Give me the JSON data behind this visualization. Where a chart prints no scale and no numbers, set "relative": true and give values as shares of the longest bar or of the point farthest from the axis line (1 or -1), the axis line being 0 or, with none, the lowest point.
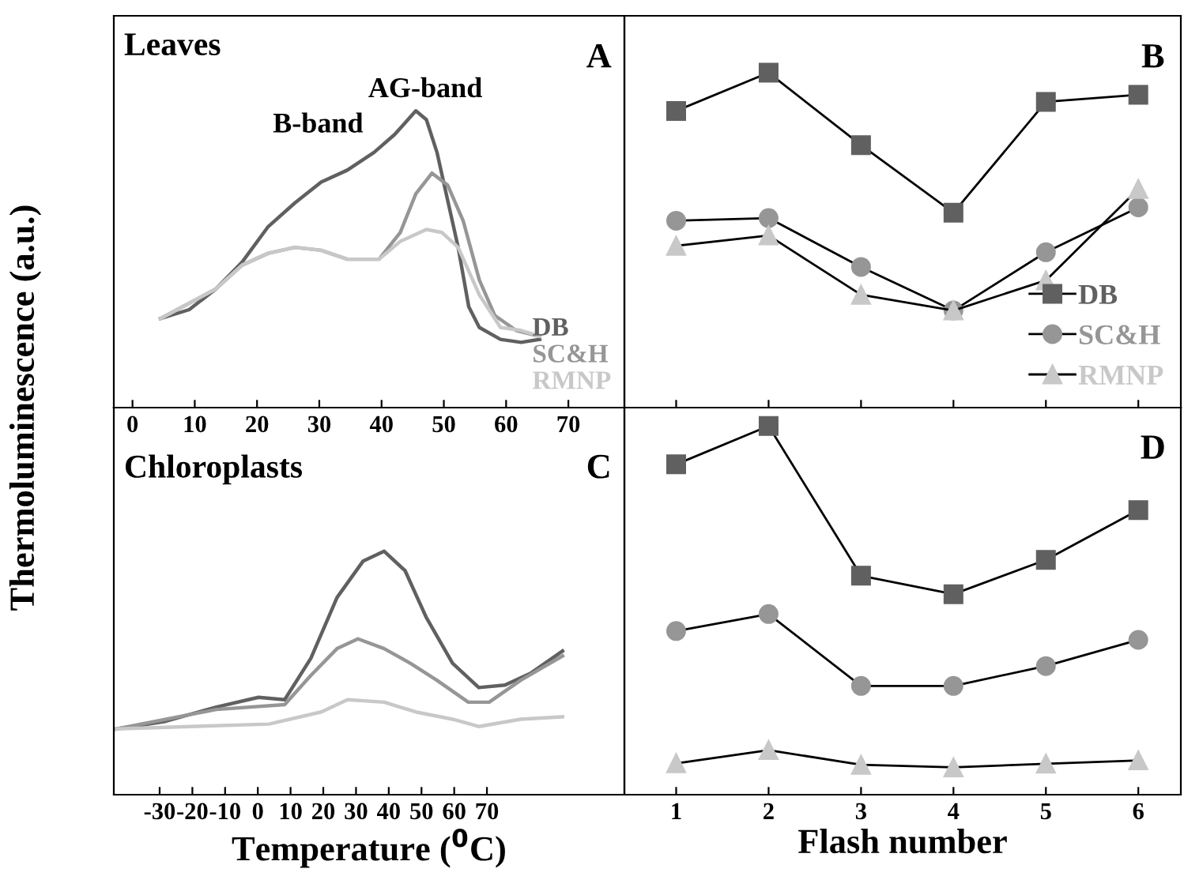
{
  "chart_data": [
    {
      "type": "line",
      "title": "Leaves",
      "ylabel": "Thermoluminescence (a.u.)",
      "relative": true,
      "xlim": [
        -3,
        79
      ],
      "xticks": [
        0,
        10,
        20,
        30,
        40,
        50,
        60,
        70
      ],
      "tick_labels": "x",
      "grid": false,
      "legend": "bottom right",
      "marker": "none",
      "annotations": [
        "A",
        "B-band",
        "AG-band"
      ],
      "series": [
        {
          "name": "DB",
          "color": "#606060",
          "x": [
            4.5,
            9.1,
            13.4,
            17.6,
            21.8,
            26.1,
            30.3,
            34.5,
            38.8,
            42.1,
            45.5,
            47.2,
            48.9,
            50.6,
            52.3,
            54.0,
            55.7,
            59.1,
            62.4,
            65.4
          ],
          "values": [
            0.3,
            0.33,
            0.4,
            0.49,
            0.61,
            0.69,
            0.76,
            0.8,
            0.86,
            0.92,
            1.0,
            0.97,
            0.86,
            0.7,
            0.54,
            0.34,
            0.27,
            0.23,
            0.22,
            0.23
          ]
        },
        {
          "name": "SC&H",
          "color": "#969696",
          "x": [
            4.5,
            13.4,
            17.6,
            21.8,
            26.1,
            30.3,
            34.5,
            39.6,
            43.0,
            45.5,
            48.1,
            50.6,
            53.1,
            55.7,
            58.2,
            61.6,
            65.4
          ],
          "values": [
            0.3,
            0.4,
            0.48,
            0.52,
            0.54,
            0.53,
            0.5,
            0.5,
            0.59,
            0.72,
            0.79,
            0.75,
            0.63,
            0.43,
            0.31,
            0.26,
            0.24
          ]
        },
        {
          "name": "RMNP",
          "color": "#c8c8c8",
          "x": [
            4.5,
            13.4,
            17.6,
            21.8,
            26.1,
            30.3,
            34.5,
            39.6,
            43.0,
            47.2,
            49.7,
            52.3,
            55.7,
            59.1,
            62.4,
            65.4
          ],
          "values": [
            0.3,
            0.4,
            0.48,
            0.52,
            0.54,
            0.53,
            0.5,
            0.5,
            0.56,
            0.6,
            0.59,
            0.54,
            0.38,
            0.27,
            0.26,
            0.24
          ]
        }
      ]
    },
    {
      "type": "line",
      "relative": true,
      "categories": [
        "1",
        "2",
        "3",
        "4",
        "5",
        "6"
      ],
      "tick_labels": false,
      "grid": false,
      "legend": "bottom right",
      "line_style": "solid",
      "annotations": [
        "B"
      ],
      "series": [
        {
          "name": "DB",
          "color": "#606060",
          "marker": "square",
          "values": [
            0.886,
            1.0,
            0.784,
            0.582,
            0.913,
            0.934
          ]
        },
        {
          "name": "SC&H",
          "color": "#969696",
          "marker": "circle",
          "values": [
            0.558,
            0.566,
            0.42,
            0.29,
            0.464,
            0.598
          ]
        },
        {
          "name": "RMNP",
          "color": "#c8c8c8",
          "marker": "triangle",
          "values": [
            0.483,
            0.514,
            0.337,
            0.29,
            0.38,
            0.653
          ]
        }
      ]
    },
    {
      "type": "line",
      "title": "Chloroplasts",
      "xlabel": "Temperature ($^{0}$C)",
      "relative": true,
      "xlim": [
        -44,
        112
      ],
      "xticks": [
        -30,
        -20,
        -10,
        0,
        10,
        20,
        30,
        40,
        50,
        60,
        70
      ],
      "tick_labels": "x",
      "grid": false,
      "legend": false,
      "marker": "none",
      "annotations": [
        "C"
      ],
      "series": [
        {
          "color": "#606060",
          "x": [
            -43.1,
            -28.7,
            -12.7,
            0.2,
            8.2,
            16.2,
            24.2,
            32.2,
            38.6,
            45.0,
            51.4,
            59.5,
            67.5,
            75.5,
            83.5,
            93.1
          ],
          "values": [
            0.27,
            0.3,
            0.36,
            0.4,
            0.39,
            0.56,
            0.81,
            0.96,
            1.0,
            0.92,
            0.73,
            0.54,
            0.44,
            0.45,
            0.5,
            0.59
          ]
        },
        {
          "color": "#969696",
          "x": [
            -43.1,
            -12.7,
            8.2,
            16.2,
            24.2,
            30.6,
            38.6,
            46.6,
            54.7,
            64.3,
            70.7,
            80.3,
            93.1
          ],
          "values": [
            0.27,
            0.35,
            0.37,
            0.49,
            0.6,
            0.64,
            0.6,
            0.54,
            0.47,
            0.38,
            0.38,
            0.47,
            0.57
          ]
        },
        {
          "color": "#c8c8c8",
          "x": [
            -43.1,
            -20.7,
            3.4,
            19.4,
            27.4,
            38.6,
            48.2,
            59.5,
            67.5,
            80.3,
            93.1
          ],
          "values": [
            0.27,
            0.28,
            0.29,
            0.34,
            0.39,
            0.38,
            0.34,
            0.31,
            0.28,
            0.31,
            0.32
          ]
        }
      ]
    },
    {
      "type": "line",
      "xlabel": "Flash number",
      "relative": true,
      "categories": [
        "1",
        "2",
        "3",
        "4",
        "5",
        "6"
      ],
      "tick_labels": "x",
      "grid": false,
      "legend": false,
      "line_style": "solid",
      "annotations": [
        "D"
      ],
      "series": [
        {
          "color": "#606060",
          "marker": "square",
          "values": [
            0.896,
            1.0,
            0.594,
            0.544,
            0.637,
            0.772
          ]
        },
        {
          "color": "#969696",
          "marker": "circle",
          "values": [
            0.444,
            0.49,
            0.295,
            0.295,
            0.349,
            0.42
          ]
        },
        {
          "color": "#c8c8c8",
          "marker": "triangle",
          "values": [
            0.085,
            0.121,
            0.081,
            0.074,
            0.084,
            0.093
          ]
        }
      ]
    }
  ]
}
